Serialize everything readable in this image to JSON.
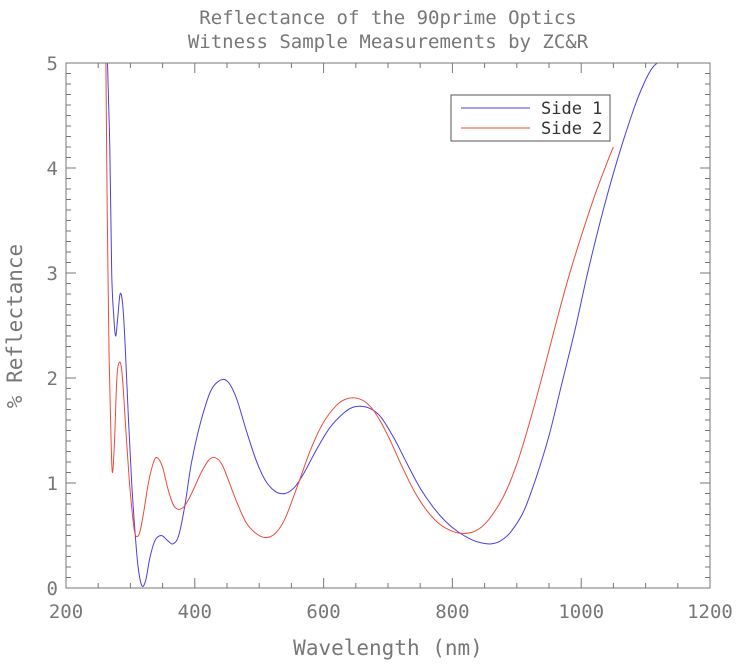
{
  "chart_data": {
    "type": "line",
    "title": "Reflectance of the 90prime Optics",
    "subtitle": "Witness Sample Measurements by ZC&R",
    "xlabel": "Wavelength (nm)",
    "ylabel": "% Reflectance",
    "xlim": [
      200,
      1200
    ],
    "ylim": [
      0,
      5
    ],
    "x_ticks": [
      200,
      400,
      600,
      800,
      1000,
      1200
    ],
    "y_ticks": [
      0,
      1,
      2,
      3,
      4,
      5
    ],
    "grid": false,
    "legend_position": "top-right",
    "series": [
      {
        "name": "Side 1",
        "color": "#4b3fe0",
        "points": [
          [
            264,
            5.1
          ],
          [
            268,
            4.2
          ],
          [
            271,
            3.0
          ],
          [
            274,
            2.6
          ],
          [
            277,
            2.4
          ],
          [
            280,
            2.55
          ],
          [
            284,
            2.8
          ],
          [
            288,
            2.7
          ],
          [
            292,
            2.3
          ],
          [
            297,
            1.6
          ],
          [
            302,
            1.0
          ],
          [
            307,
            0.55
          ],
          [
            312,
            0.2
          ],
          [
            318,
            0.02
          ],
          [
            324,
            0.08
          ],
          [
            330,
            0.28
          ],
          [
            338,
            0.45
          ],
          [
            348,
            0.5
          ],
          [
            358,
            0.45
          ],
          [
            366,
            0.42
          ],
          [
            375,
            0.5
          ],
          [
            385,
            0.8
          ],
          [
            395,
            1.2
          ],
          [
            410,
            1.6
          ],
          [
            425,
            1.88
          ],
          [
            440,
            1.98
          ],
          [
            452,
            1.96
          ],
          [
            465,
            1.8
          ],
          [
            480,
            1.5
          ],
          [
            495,
            1.22
          ],
          [
            510,
            1.02
          ],
          [
            525,
            0.92
          ],
          [
            540,
            0.9
          ],
          [
            555,
            0.96
          ],
          [
            570,
            1.1
          ],
          [
            590,
            1.33
          ],
          [
            610,
            1.53
          ],
          [
            630,
            1.66
          ],
          [
            645,
            1.72
          ],
          [
            660,
            1.73
          ],
          [
            675,
            1.7
          ],
          [
            690,
            1.62
          ],
          [
            710,
            1.42
          ],
          [
            730,
            1.18
          ],
          [
            750,
            0.95
          ],
          [
            770,
            0.77
          ],
          [
            790,
            0.63
          ],
          [
            810,
            0.53
          ],
          [
            830,
            0.46
          ],
          [
            845,
            0.43
          ],
          [
            860,
            0.42
          ],
          [
            875,
            0.45
          ],
          [
            890,
            0.53
          ],
          [
            910,
            0.72
          ],
          [
            930,
            1.05
          ],
          [
            950,
            1.45
          ],
          [
            970,
            1.95
          ],
          [
            990,
            2.45
          ],
          [
            1010,
            3.0
          ],
          [
            1030,
            3.5
          ],
          [
            1050,
            3.95
          ],
          [
            1070,
            4.35
          ],
          [
            1090,
            4.7
          ],
          [
            1110,
            4.95
          ],
          [
            1130,
            5.05
          ]
        ]
      },
      {
        "name": "Side 2",
        "color": "#f04a3a",
        "points": [
          [
            262,
            5.0
          ],
          [
            264,
            3.6
          ],
          [
            267,
            2.2
          ],
          [
            270,
            1.4
          ],
          [
            272,
            1.1
          ],
          [
            275,
            1.35
          ],
          [
            279,
            2.0
          ],
          [
            283,
            2.15
          ],
          [
            287,
            2.05
          ],
          [
            292,
            1.6
          ],
          [
            298,
            1.05
          ],
          [
            304,
            0.65
          ],
          [
            308,
            0.5
          ],
          [
            314,
            0.52
          ],
          [
            320,
            0.7
          ],
          [
            328,
            1.0
          ],
          [
            336,
            1.2
          ],
          [
            342,
            1.24
          ],
          [
            350,
            1.15
          ],
          [
            358,
            0.95
          ],
          [
            366,
            0.8
          ],
          [
            374,
            0.75
          ],
          [
            384,
            0.78
          ],
          [
            395,
            0.9
          ],
          [
            410,
            1.1
          ],
          [
            422,
            1.22
          ],
          [
            432,
            1.24
          ],
          [
            442,
            1.18
          ],
          [
            452,
            1.03
          ],
          [
            465,
            0.82
          ],
          [
            480,
            0.62
          ],
          [
            495,
            0.52
          ],
          [
            510,
            0.48
          ],
          [
            525,
            0.52
          ],
          [
            540,
            0.66
          ],
          [
            560,
            0.98
          ],
          [
            580,
            1.32
          ],
          [
            600,
            1.58
          ],
          [
            620,
            1.74
          ],
          [
            635,
            1.8
          ],
          [
            650,
            1.81
          ],
          [
            665,
            1.77
          ],
          [
            680,
            1.67
          ],
          [
            700,
            1.45
          ],
          [
            720,
            1.18
          ],
          [
            740,
            0.93
          ],
          [
            760,
            0.74
          ],
          [
            780,
            0.61
          ],
          [
            800,
            0.54
          ],
          [
            815,
            0.52
          ],
          [
            830,
            0.53
          ],
          [
            845,
            0.58
          ],
          [
            860,
            0.68
          ],
          [
            880,
            0.88
          ],
          [
            900,
            1.18
          ],
          [
            920,
            1.58
          ],
          [
            940,
            2.03
          ],
          [
            960,
            2.5
          ],
          [
            980,
            2.95
          ],
          [
            1000,
            3.35
          ],
          [
            1020,
            3.72
          ],
          [
            1040,
            4.05
          ],
          [
            1050,
            4.2
          ]
        ]
      }
    ]
  }
}
